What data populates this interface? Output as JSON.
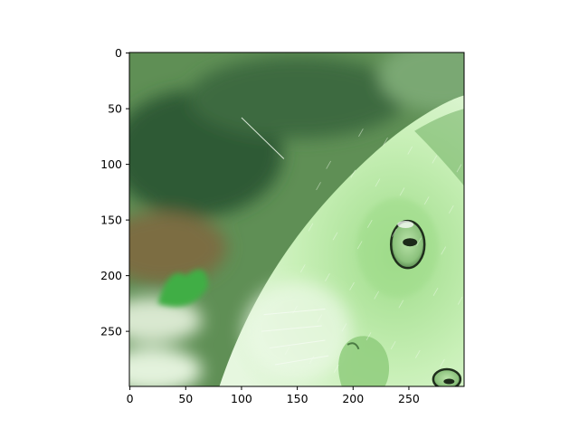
{
  "figure": {
    "background_color": "#ffffff",
    "axes_edge_color": "#000000"
  },
  "chart_data": {
    "type": "image",
    "image_description": "Green-tinted photograph displayed with imshow: close-up of a cat's face seen sideways (one eye large at center-right, nose at bottom, second eye partially visible at bottom-right corner), blurred dark green foliage background at top-left and a brownish area at middle-left with a small bright green leaf shape.",
    "image_size": {
      "width": 300,
      "height": 300
    },
    "xlim": [
      -0.5,
      299.5
    ],
    "ylim": [
      299.5,
      -0.5
    ],
    "y_inverted": true,
    "x_ticks": [
      0,
      50,
      100,
      150,
      200,
      250
    ],
    "y_ticks": [
      0,
      50,
      100,
      150,
      200,
      250
    ],
    "x_tick_labels": [
      "0",
      "50",
      "100",
      "150",
      "200",
      "250"
    ],
    "y_tick_labels": [
      "0",
      "50",
      "100",
      "150",
      "200",
      "250"
    ],
    "title": "",
    "xlabel": "",
    "ylabel": "",
    "grid": false,
    "palette": {
      "background_dark": "#2f5a34",
      "background_mid": "#5f8f55",
      "background_brown": "#7b6d42",
      "fur_light": "#c9f0b8",
      "fur_mid": "#9fdc8a",
      "fur_shadow": "#6fae62",
      "eye_iris": "#8bc17c",
      "eye_pupil": "#1d2a1a",
      "leaf": "#3fae44"
    }
  }
}
